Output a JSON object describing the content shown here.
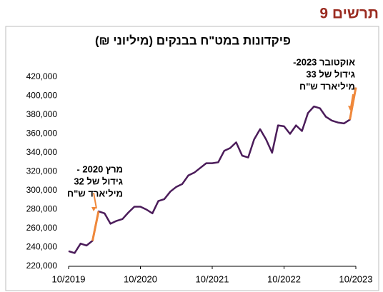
{
  "header": "תרשים 9",
  "chart_data": {
    "type": "line",
    "title": "פיקדונות במט\"ח בבנקים (מיליוני ₪)",
    "categories": [
      "10/2019",
      null,
      null,
      null,
      null,
      null,
      null,
      null,
      null,
      null,
      null,
      null,
      "10/2020",
      null,
      null,
      null,
      null,
      null,
      null,
      null,
      null,
      null,
      null,
      null,
      "10/2021",
      null,
      null,
      null,
      null,
      null,
      null,
      null,
      null,
      null,
      null,
      null,
      "10/2022",
      null,
      null,
      null,
      null,
      null,
      null,
      null,
      null,
      null,
      null,
      null,
      "10/2023"
    ],
    "series": [
      {
        "color": "#4b1c5a",
        "values": [
          236000,
          234000,
          244000,
          242000,
          247000,
          278000,
          276000,
          265000,
          268000,
          270000,
          277000,
          283000,
          283000,
          280000,
          276000,
          289000,
          291000,
          299000,
          304000,
          307000,
          316000,
          319000,
          324000,
          329000,
          329000,
          330000,
          342000,
          345000,
          351000,
          337000,
          335000,
          354000,
          365000,
          354000,
          340000,
          369000,
          368000,
          360000,
          369000,
          363000,
          382000,
          389000,
          387000,
          378000,
          374000,
          372000,
          371000,
          375000,
          409000
        ]
      },
      {
        "color": "#f0883a",
        "values": [
          null,
          null,
          null,
          null,
          247000,
          278000,
          null,
          null,
          null,
          null,
          null,
          null,
          null,
          null,
          null,
          null,
          null,
          null,
          null,
          null,
          null,
          null,
          null,
          null,
          null,
          null,
          null,
          null,
          null,
          null,
          null,
          null,
          null,
          null,
          null,
          null,
          null,
          null,
          null,
          null,
          null,
          null,
          null,
          null,
          null,
          null,
          null,
          375000,
          409000
        ]
      }
    ],
    "ylim": [
      220000,
      420000
    ],
    "yticks": [
      {
        "value": 220000,
        "label": "220,000"
      },
      {
        "value": 240000,
        "label": "240,000"
      },
      {
        "value": 260000,
        "label": "260,000"
      },
      {
        "value": 280000,
        "label": "280,000"
      },
      {
        "value": 300000,
        "label": "300,000"
      },
      {
        "value": 320000,
        "label": "320,000"
      },
      {
        "value": 340000,
        "label": "340,000"
      },
      {
        "value": 360000,
        "label": "360,000"
      },
      {
        "value": 380000,
        "label": "380,000"
      },
      {
        "value": 400000,
        "label": "400,000"
      },
      {
        "value": 420000,
        "label": "420,000"
      }
    ],
    "grid": false,
    "annotations": [
      [
        "מרץ 2020 -",
        "גידול של 32",
        "מיליארד ש\"ח"
      ],
      [
        "אוקטובר 2023-",
        "גידול של 33",
        "מיליארד ש\"ח"
      ]
    ]
  }
}
